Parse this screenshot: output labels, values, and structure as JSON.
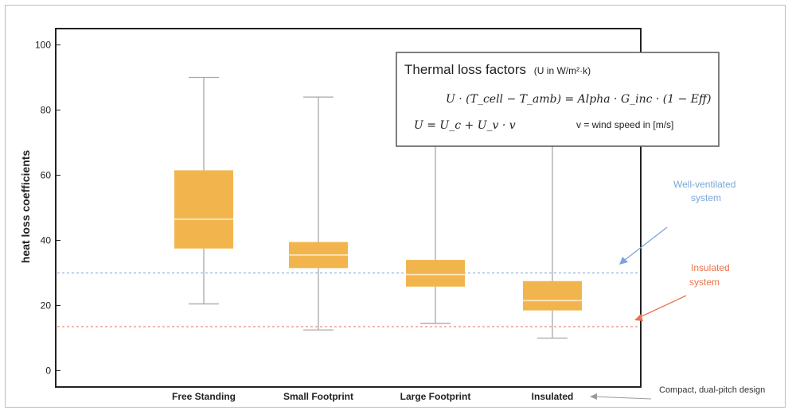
{
  "chart_data": {
    "type": "box",
    "ylabel": "heat loss coefficients",
    "ylim": [
      -5,
      105
    ],
    "yticks": [
      "0",
      "20",
      "40",
      "60",
      "80",
      "100"
    ],
    "categories": [
      "Free Standing",
      "Small Footprint",
      "Large Footprint",
      "Insulated"
    ],
    "boxes": [
      {
        "min": 20.5,
        "q1": 37.5,
        "median": 46.5,
        "q3": 61.5,
        "max": 90
      },
      {
        "min": 12.5,
        "q1": 31.5,
        "median": 35.5,
        "q3": 39.5,
        "max": 84
      },
      {
        "min": 14.5,
        "q1": 25.8,
        "median": 29.5,
        "q3": 34,
        "max": 70
      },
      {
        "min": 10,
        "q1": 18.5,
        "median": 21.5,
        "q3": 27.5,
        "max": 70
      }
    ],
    "reference_lines": [
      {
        "value": 30,
        "color": "#8fb3dc"
      },
      {
        "value": 13.5,
        "color": "#e88b73"
      }
    ],
    "annotations": [
      {
        "text_lines": [
          "Well-ventilated",
          "system"
        ],
        "color": "#7aa6d8"
      },
      {
        "text_lines": [
          "Insulated",
          "system"
        ],
        "color": "#e8744f"
      },
      {
        "text": "Compact, dual-pitch design",
        "color": "#333333"
      }
    ],
    "inset": {
      "title": "Thermal loss factors",
      "title_paren_open": "(",
      "title_U": "U",
      "title_unit": " in W/m²·k)",
      "eq1": "U · (T_cell − T_amb) = Alpha · G_inc · (1 − Eff)",
      "eq2": "U = U_c + U_v · v",
      "wind_note": "v = wind speed in [m/s]"
    }
  },
  "colors": {
    "box_fill": "#f2b54e",
    "box_median": "#fde9c4",
    "whisker": "#a9a9a9",
    "frame": "#222222",
    "u_highlight": "#8a9a2a"
  }
}
